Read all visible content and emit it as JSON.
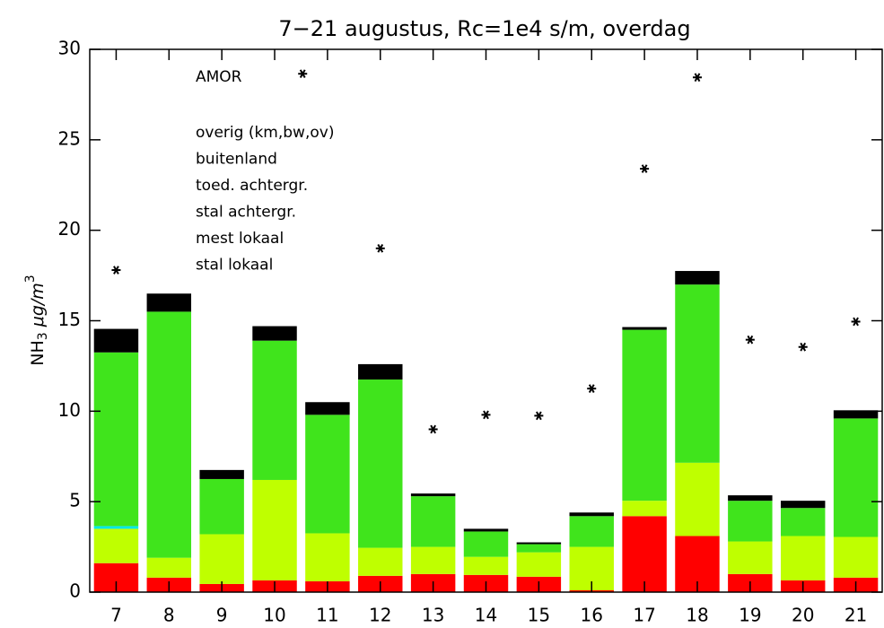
{
  "chart_data": {
    "type": "bar",
    "stacked": true,
    "title": "7−21 augustus, Rc=1e4 s/m, overdag",
    "ylabel": {
      "main": "NH",
      "sub": "3",
      "unit": " μg/m",
      "sup": "3"
    },
    "x": [
      7,
      8,
      9,
      10,
      11,
      12,
      13,
      14,
      15,
      16,
      17,
      18,
      19,
      20,
      21
    ],
    "xlim": [
      6.5,
      21.5
    ],
    "xticks": [
      7,
      8,
      9,
      10,
      11,
      12,
      13,
      14,
      15,
      16,
      17,
      18,
      19,
      20,
      21
    ],
    "ylim": [
      0,
      30
    ],
    "yticks": [
      0,
      5,
      10,
      15,
      20,
      25,
      30
    ],
    "series": [
      {
        "name": "stal lokaal",
        "color": "#ff0000",
        "values": [
          1.6,
          0.8,
          0.45,
          0.65,
          0.6,
          0.9,
          1.0,
          0.95,
          0.85,
          0.1,
          4.2,
          3.1,
          1.0,
          0.65,
          0.8
        ]
      },
      {
        "name": "mest lokaal",
        "color": "#ff8000",
        "values": [
          0,
          0,
          0,
          0,
          0,
          0,
          0,
          0,
          0,
          0,
          0,
          0,
          0,
          0,
          0
        ]
      },
      {
        "name": "stal achtergr.",
        "color": "#bfff00",
        "values": [
          1.9,
          1.1,
          2.75,
          5.55,
          2.65,
          1.55,
          1.5,
          1.0,
          1.35,
          2.4,
          0.85,
          4.05,
          1.8,
          2.45,
          2.25
        ]
      },
      {
        "name": "toed. achtergr.",
        "color": "#00e8e8",
        "values": [
          0.15,
          0,
          0,
          0,
          0,
          0,
          0,
          0,
          0,
          0,
          0,
          0,
          0,
          0,
          0
        ]
      },
      {
        "name": "buitenland",
        "color": "#40e41c",
        "values": [
          9.6,
          13.6,
          3.05,
          7.7,
          6.55,
          9.3,
          2.8,
          1.4,
          0.45,
          1.7,
          9.45,
          9.85,
          2.25,
          1.55,
          6.55
        ]
      },
      {
        "name": "overig (km,bw,ov)",
        "color": "#000000",
        "values": [
          1.3,
          1.0,
          0.5,
          0.8,
          0.7,
          0.85,
          0.15,
          0.15,
          0.1,
          0.2,
          0.15,
          0.75,
          0.3,
          0.4,
          0.45
        ]
      }
    ],
    "scatter": {
      "name": "AMOR",
      "color": "#000000",
      "x": [
        7,
        10.53,
        12,
        13,
        14,
        15,
        16,
        17,
        18,
        19,
        20,
        21
      ],
      "values": [
        17.8,
        28.65,
        19.0,
        9.0,
        9.8,
        9.75,
        11.25,
        23.4,
        28.45,
        13.95,
        13.55,
        14.95
      ]
    }
  }
}
